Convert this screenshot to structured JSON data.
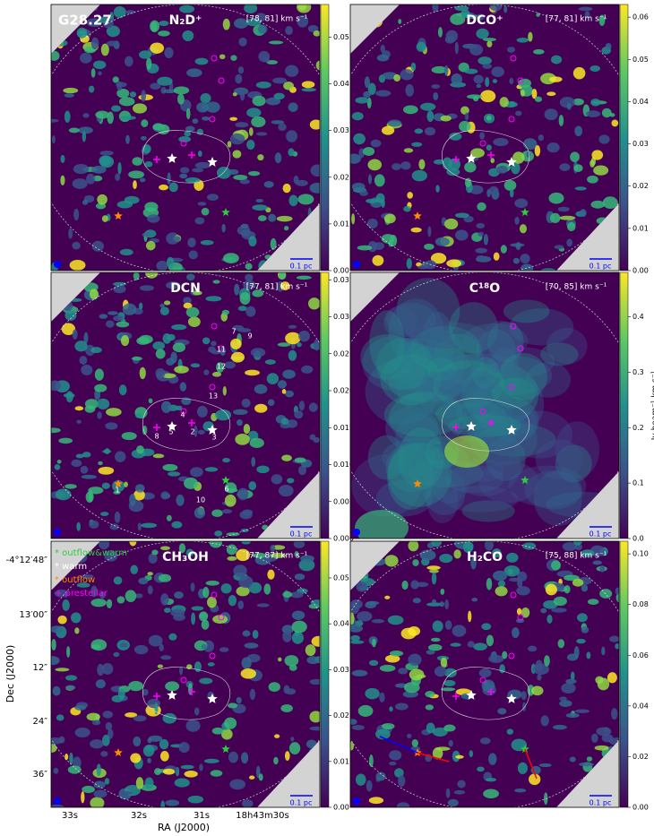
{
  "source": "G28.27",
  "panels": [
    {
      "molecule": "N₂D⁺",
      "velocity": "[78, 81] km s⁻¹",
      "colorbar": {
        "range": [
          0,
          0.057
        ],
        "ticks": [
          {
            "value": 0,
            "label": "0.00"
          },
          0.01,
          0.02,
          0.03,
          0.04,
          0.05
        ]
      }
    },
    {
      "molecule": "DCO⁺",
      "velocity": "[77, 81] km s⁻¹",
      "colorbar": {
        "range": [
          0,
          0.063
        ],
        "ticks": [
          {
            "value": 0,
            "label": "0.00"
          },
          0.01,
          0.02,
          0.03,
          0.04,
          0.05,
          0.06
        ]
      }
    },
    {
      "molecule": "DCN",
      "velocity": "[77, 81] km s⁻¹",
      "colorbar": {
        "range": [
          0,
          0.036
        ],
        "ticks": [
          {
            "value": 0,
            "label": "0.000"
          },
          0.005,
          {
            "value": 0.01,
            "label": "0.010"
          },
          0.015,
          {
            "value": 0.02,
            "label": "0.020"
          },
          0.025,
          {
            "value": 0.03,
            "label": "0.030"
          },
          0.035
        ]
      }
    },
    {
      "molecule": "C¹⁸O",
      "velocity": "[70, 85] km s⁻¹",
      "colorbar": {
        "range": [
          0,
          0.48
        ],
        "ticks": [
          {
            "value": 0,
            "label": "0.0"
          },
          0.1,
          0.2,
          0.3,
          0.4
        ]
      }
    },
    {
      "molecule": "CH₃OH",
      "velocity": "[77, 87] km s⁻¹",
      "colorbar": {
        "range": [
          0,
          0.058
        ],
        "ticks": [
          {
            "value": 0,
            "label": "0.00"
          },
          0.01,
          0.02,
          0.03,
          0.04,
          0.05
        ]
      }
    },
    {
      "molecule": "H₂CO",
      "velocity": "[75, 88] km s⁻¹",
      "colorbar": {
        "range": [
          0,
          0.105
        ],
        "ticks": [
          {
            "value": 0,
            "label": "0.00"
          },
          0.02,
          0.04,
          0.06,
          0.08,
          {
            "value": 0.1,
            "label": "0.10"
          }
        ]
      }
    }
  ],
  "scale_bar": "0.1 pc",
  "colorbar_label": "Jy beam⁻¹ km s⁻¹",
  "dcn_labels": [
    "1",
    "2",
    "3",
    "4",
    "5",
    "6",
    "7",
    "8",
    "9",
    "10",
    "11",
    "12",
    "13"
  ],
  "legend": [
    "* outflow&warm",
    "* warm",
    "* outflow",
    "+ prestellar"
  ],
  "x_axis": {
    "label": "RA (J2000)",
    "ticks": [
      "33s",
      "32s",
      "31s",
      "18h43m30s"
    ]
  },
  "y_axis": {
    "label": "Dec (J2000)",
    "ticks": [
      "-4°12′48″",
      "13′00″",
      "12″",
      "24″",
      "36″"
    ]
  }
}
